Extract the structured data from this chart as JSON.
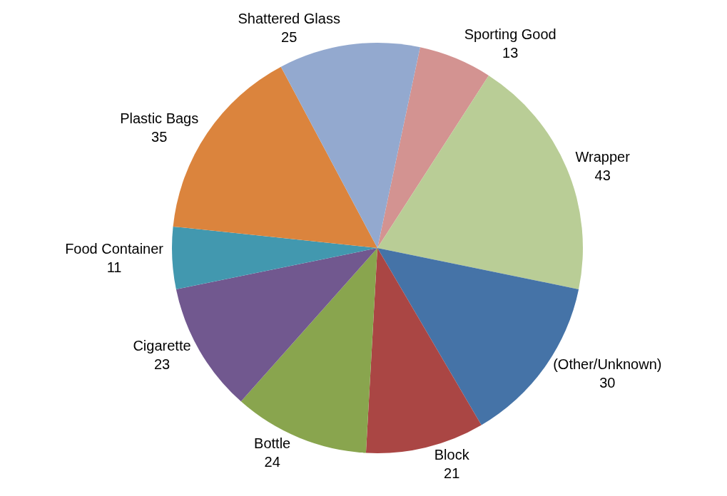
{
  "chart_data": {
    "type": "pie",
    "categories": [
      "Sporting Good",
      "Wrapper",
      "(Other/Unknown)",
      "Block",
      "Bottle",
      "Cigarette",
      "Food Container",
      "Plastic Bags",
      "Shattered Glass"
    ],
    "values": [
      13,
      43,
      30,
      21,
      24,
      23,
      11,
      35,
      25
    ],
    "colors": [
      "#d39391",
      "#b9cd96",
      "#4573a7",
      "#aa4644",
      "#89a54e",
      "#71588f",
      "#4298af",
      "#db843d",
      "#93a9cf"
    ],
    "data_labels": true,
    "legend": false
  }
}
